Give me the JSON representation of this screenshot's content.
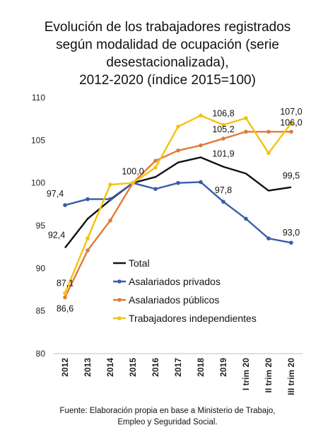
{
  "title_lines": [
    "Evolución de los trabajadores registrados",
    "según modalidad de ocupación (serie",
    "desestacionalizada),",
    "2012-2020 (índice 2015=100)"
  ],
  "source_lines": [
    "Fuente: Elaboración propia en base a Ministerio de Trabajo,",
    "Empleo y Seguridad Social."
  ],
  "chart_data": {
    "type": "line",
    "categories": [
      "2012",
      "2013",
      "2014",
      "2015",
      "2016",
      "2017",
      "2018",
      "2019",
      "I trim 20",
      "II trim 20",
      "III trim 20"
    ],
    "ylim": [
      80,
      110
    ],
    "yticks": [
      80,
      85,
      90,
      95,
      100,
      105,
      110
    ],
    "legend_position": "lower-left inside plot",
    "grid": false,
    "series": [
      {
        "name": "Total",
        "color": "#111111",
        "markers": false,
        "values": [
          92.4,
          95.8,
          98.0,
          100.0,
          100.7,
          102.4,
          103.0,
          101.9,
          101.1,
          99.1,
          99.5
        ]
      },
      {
        "name": "Asalariados privados",
        "color": "#3a5ca8",
        "markers": true,
        "values": [
          97.4,
          98.1,
          98.1,
          100.0,
          99.3,
          100.0,
          100.1,
          97.8,
          95.8,
          93.5,
          93.0
        ]
      },
      {
        "name": "Asalariados públicos",
        "color": "#e07b39",
        "markers": true,
        "values": [
          86.6,
          92.1,
          95.6,
          100.0,
          102.6,
          103.8,
          104.4,
          105.2,
          106.0,
          106.0,
          106.0
        ]
      },
      {
        "name": "Trabajadores independientes",
        "color": "#f5c20f",
        "markers": true,
        "values": [
          87.1,
          93.5,
          99.8,
          100.0,
          101.8,
          106.6,
          107.9,
          106.8,
          107.6,
          103.5,
          107.0
        ]
      }
    ],
    "data_labels": [
      {
        "text": "97,4",
        "series": 1,
        "index": 0
      },
      {
        "text": "92,4",
        "series": 0,
        "index": 0
      },
      {
        "text": "87,1",
        "series": 3,
        "index": 0
      },
      {
        "text": "86,6",
        "series": 2,
        "index": 0
      },
      {
        "text": "100,0",
        "series": 0,
        "index": 3
      },
      {
        "text": "106,8",
        "series": 3,
        "index": 7
      },
      {
        "text": "105,2",
        "series": 2,
        "index": 7
      },
      {
        "text": "101,9",
        "series": 0,
        "index": 7
      },
      {
        "text": "97,8",
        "series": 1,
        "index": 7
      },
      {
        "text": "107,0",
        "series": 3,
        "index": 10
      },
      {
        "text": "106,0",
        "series": 2,
        "index": 10
      },
      {
        "text": "99,5",
        "series": 0,
        "index": 10
      },
      {
        "text": "93,0",
        "series": 1,
        "index": 10
      }
    ]
  }
}
